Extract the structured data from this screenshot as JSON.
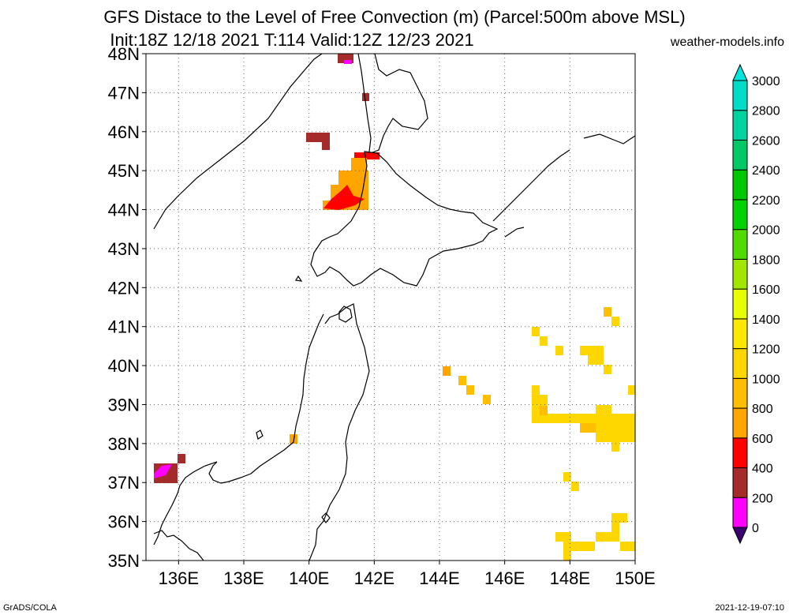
{
  "title_line1": "GFS Distace to the Level of Free Convection (m) (Parcel:500m above MSL)",
  "title_line2": "Init:18Z 12/18 2021 T:114 Valid:12Z 12/23 2021",
  "site": "weather-models.info",
  "footer_left": "GrADS/COLA",
  "footer_right": "2021-12-19-07:10",
  "map": {
    "lon_range": [
      135,
      150
    ],
    "lat_range": [
      35,
      48
    ],
    "lat_labels": [
      "35N",
      "36N",
      "37N",
      "38N",
      "39N",
      "40N",
      "41N",
      "42N",
      "43N",
      "44N",
      "45N",
      "46N",
      "47N",
      "48N"
    ],
    "lon_labels": [
      "136E",
      "138E",
      "140E",
      "142E",
      "144E",
      "146E",
      "148E",
      "150E"
    ],
    "lat_values": [
      35,
      36,
      37,
      38,
      39,
      40,
      41,
      42,
      43,
      44,
      45,
      46,
      47,
      48
    ],
    "lon_values": [
      136,
      138,
      140,
      142,
      144,
      146,
      148,
      150
    ],
    "colorbar": {
      "labels": [
        "0",
        "200",
        "400",
        "600",
        "800",
        "1000",
        "1200",
        "1400",
        "1600",
        "1800",
        "2000",
        "2200",
        "2400",
        "2600",
        "2800",
        "3000"
      ],
      "colors": [
        "#3a0070",
        "#ff00ff",
        "#a52a2a",
        "#ff0000",
        "#ffa500",
        "#ffbf00",
        "#ffd700",
        "#ffe800",
        "#e8ff00",
        "#a0e600",
        "#50dc00",
        "#00d200",
        "#00c800",
        "#00c864",
        "#00d2a0",
        "#00dcc8",
        "#00e6dc"
      ]
    }
  }
}
